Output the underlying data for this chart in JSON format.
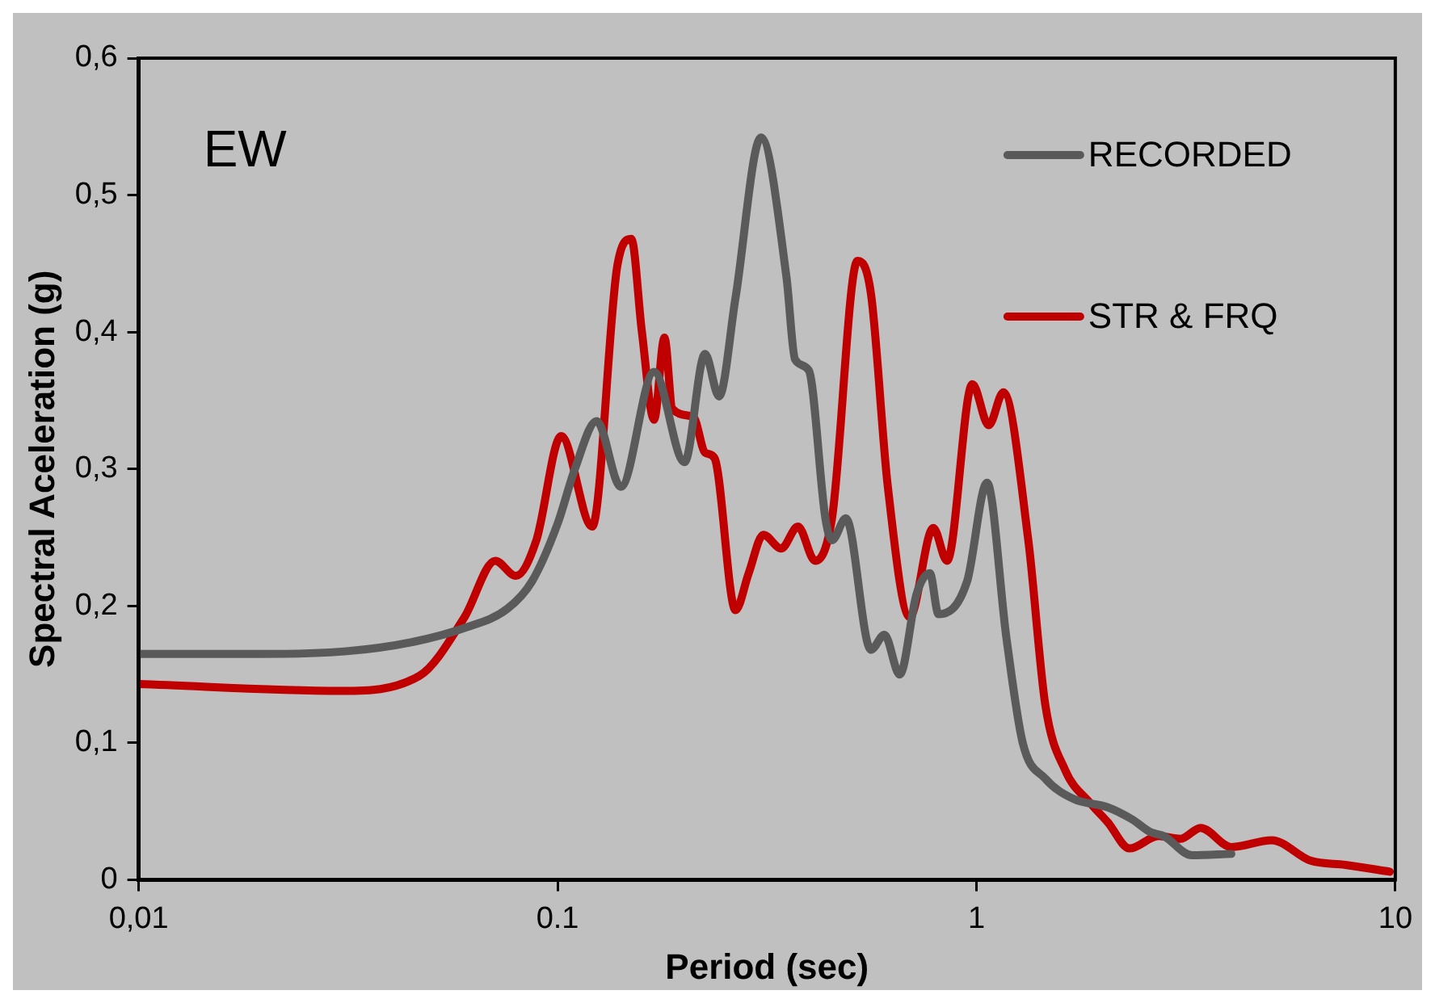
{
  "chart_data": {
    "type": "line",
    "title": "EW",
    "xlabel": "Period (sec)",
    "ylabel": "Spectral Aceleration (g)",
    "log": "x",
    "xlim": [
      0.01,
      10
    ],
    "xticks": [
      {
        "value": 0.01,
        "label": "0,01"
      },
      0.1,
      1,
      10
    ],
    "ylim": [
      0,
      0.6
    ],
    "yticks": [
      0,
      {
        "value": 0.1,
        "label": "0,1"
      },
      {
        "value": 0.2,
        "label": "0,2"
      },
      {
        "value": 0.3,
        "label": "0,3"
      },
      {
        "value": 0.4,
        "label": "0,4"
      },
      {
        "value": 0.5,
        "label": "0,5"
      },
      {
        "value": 0.6,
        "label": "0,6"
      }
    ],
    "grid": false,
    "legend": "top right",
    "marker": "none",
    "line_style": "solid",
    "series": [
      {
        "name": "RECORDED",
        "color": "#5a5a5a",
        "x": [
          0.01,
          0.0197,
          0.0314,
          0.0455,
          0.06,
          0.0759,
          0.0869,
          0.1,
          0.11,
          0.124,
          0.1416,
          0.17,
          0.201,
          0.225,
          0.243,
          0.266,
          0.306,
          0.352,
          0.369,
          0.398,
          0.436,
          0.452,
          0.488,
          0.56,
          0.603,
          0.656,
          0.72,
          0.774,
          0.812,
          0.95,
          1.06,
          1.18,
          1.29,
          1.46,
          1.71,
          2.06,
          2.36,
          2.6,
          2.8,
          3.27,
          4.06
        ],
        "values": [
          0.165,
          0.165,
          0.167,
          0.174,
          0.184,
          0.198,
          0.218,
          0.26,
          0.3,
          0.335,
          0.287,
          0.371,
          0.305,
          0.384,
          0.353,
          0.425,
          0.542,
          0.44,
          0.38,
          0.372,
          0.264,
          0.248,
          0.264,
          0.168,
          0.179,
          0.15,
          0.209,
          0.224,
          0.194,
          0.218,
          0.29,
          0.176,
          0.1,
          0.074,
          0.059,
          0.053,
          0.044,
          0.035,
          0.032,
          0.018,
          0.019
        ]
      },
      {
        "name": "STR & FRQ",
        "color": "#c00000",
        "x": [
          0.01,
          0.0305,
          0.0468,
          0.06,
          0.071,
          0.0795,
          0.089,
          0.102,
          0.121,
          0.139,
          0.15,
          0.159,
          0.17,
          0.18,
          0.188,
          0.211,
          0.225,
          0.237,
          0.266,
          0.286,
          0.31,
          0.342,
          0.375,
          0.412,
          0.452,
          0.52,
          0.56,
          0.614,
          0.693,
          0.789,
          0.851,
          0.978,
          1.07,
          1.16,
          1.33,
          1.46,
          1.63,
          1.87,
          2.06,
          2.32,
          2.72,
          3.07,
          3.43,
          4.06,
          5.07,
          6.28,
          7.6,
          9.7
        ],
        "values": [
          0.143,
          0.138,
          0.149,
          0.192,
          0.233,
          0.222,
          0.248,
          0.324,
          0.258,
          0.449,
          0.468,
          0.4,
          0.336,
          0.396,
          0.344,
          0.338,
          0.312,
          0.308,
          0.197,
          0.224,
          0.252,
          0.242,
          0.258,
          0.233,
          0.264,
          0.452,
          0.428,
          0.288,
          0.192,
          0.257,
          0.233,
          0.362,
          0.332,
          0.356,
          0.248,
          0.128,
          0.08,
          0.056,
          0.042,
          0.023,
          0.032,
          0.03,
          0.038,
          0.024,
          0.029,
          0.014,
          0.011,
          0.006
        ]
      }
    ]
  }
}
